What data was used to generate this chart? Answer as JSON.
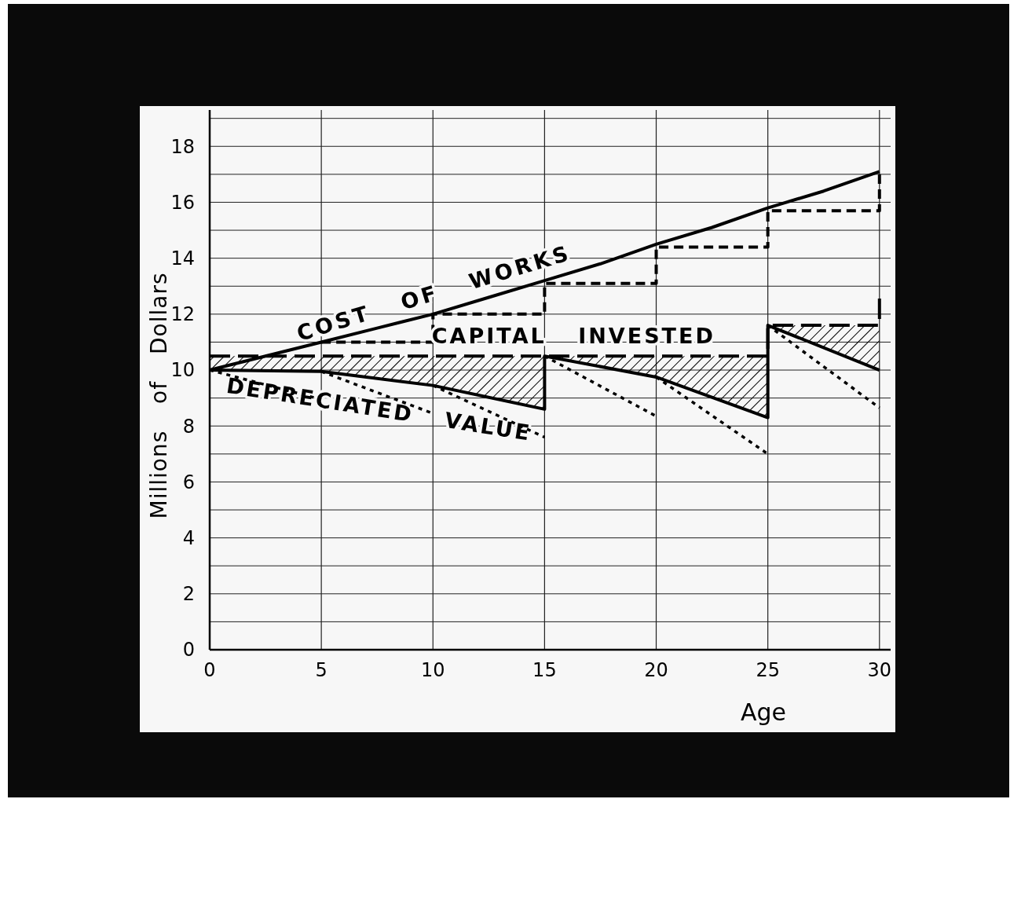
{
  "chart_data": {
    "type": "line",
    "xlabel": "Age",
    "ylabel": "Millions of Dollars",
    "xlim": [
      0,
      30.5
    ],
    "ylim": [
      0,
      19.3
    ],
    "xticks": [
      0,
      5,
      10,
      15,
      20,
      25,
      30
    ],
    "yticks": [
      0,
      {
        "value": 1,
        "label": null
      },
      2,
      {
        "value": 3,
        "label": null
      },
      4,
      {
        "value": 5,
        "label": null
      },
      6,
      {
        "value": 7,
        "label": null
      },
      8,
      {
        "value": 9,
        "label": null
      },
      10,
      {
        "value": 11,
        "label": null
      },
      12,
      {
        "value": 13,
        "label": null
      },
      14,
      {
        "value": 15,
        "label": null
      },
      16,
      {
        "value": 17,
        "label": null
      },
      18,
      {
        "value": 19,
        "label": null
      }
    ],
    "grid": true,
    "series": [
      {
        "name": "COST OF WORKS",
        "color": "#000000",
        "line_style": "solid",
        "x": [
          0,
          2.5,
          5,
          7.5,
          10,
          12.5,
          15,
          17.5,
          20,
          22.5,
          25,
          27.5,
          30
        ],
        "values": [
          10,
          10.5,
          11.0,
          11.5,
          12.0,
          12.6,
          13.2,
          13.8,
          14.5,
          15.1,
          15.8,
          16.4,
          17.1
        ]
      },
      {
        "type": "step",
        "color": "#000000",
        "line_style": "dashed",
        "x": [
          5,
          10,
          15,
          20,
          25,
          30
        ],
        "values": [
          11.0,
          12.0,
          13.1,
          14.4,
          15.7,
          17.1
        ]
      },
      {
        "name": "CAPITAL INVESTED",
        "type": "step",
        "color": "#000000",
        "line_style": "dashed",
        "x": [
          0,
          25,
          30
        ],
        "values": [
          10.5,
          11.6,
          12.6
        ]
      },
      {
        "name": "DEPRECIATED VALUE",
        "color": "#000000",
        "line_style": "solid",
        "x": [
          0,
          5,
          10,
          15,
          15,
          20,
          25,
          25,
          30
        ],
        "values": [
          10,
          9.95,
          9.45,
          8.6,
          10.5,
          9.75,
          8.3,
          11.6,
          10.0
        ],
        "lower": [
          10,
          9.95,
          9.45,
          8.6,
          10.5,
          9.75,
          8.3,
          11.6,
          10.0
        ],
        "upper": [
          10.5,
          10.5,
          10.5,
          10.5,
          10.5,
          10.5,
          10.5,
          11.6,
          11.6
        ]
      },
      {
        "color": "#000000",
        "line_style": "dotted",
        "x": [
          0,
          5
        ],
        "values": [
          10,
          8.95
        ]
      },
      {
        "color": "#000000",
        "line_style": "dotted",
        "x": [
          5,
          10
        ],
        "values": [
          9.95,
          8.45
        ]
      },
      {
        "color": "#000000",
        "line_style": "dotted",
        "x": [
          10,
          15
        ],
        "values": [
          9.45,
          7.6
        ]
      },
      {
        "color": "#000000",
        "line_style": "dotted",
        "x": [
          15,
          20
        ],
        "values": [
          10.5,
          8.35
        ]
      },
      {
        "color": "#000000",
        "line_style": "dotted",
        "x": [
          20,
          25
        ],
        "values": [
          9.75,
          7.0
        ]
      },
      {
        "color": "#000000",
        "line_style": "dotted",
        "x": [
          25,
          30
        ],
        "values": [
          11.6,
          8.65
        ]
      }
    ]
  }
}
